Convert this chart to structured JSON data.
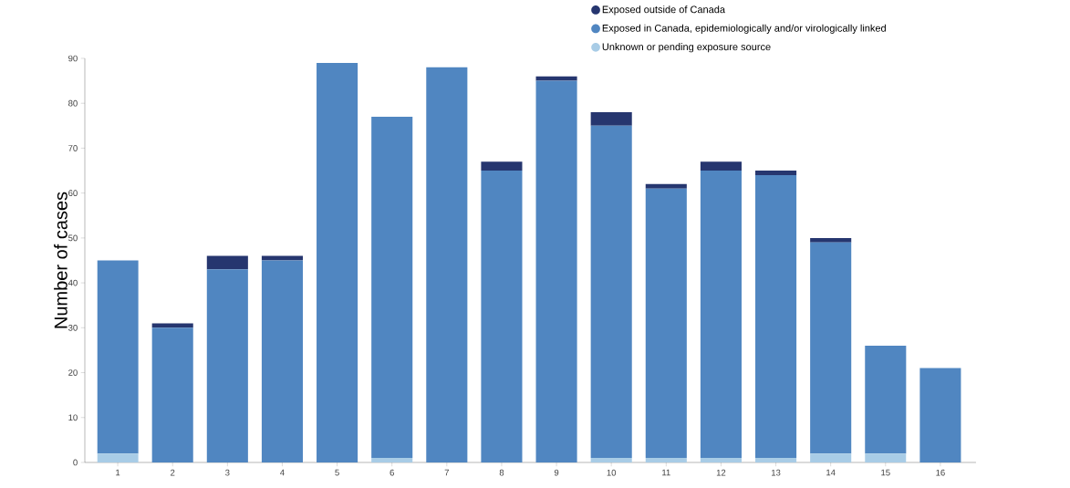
{
  "chart_data": {
    "type": "bar",
    "stacked": true,
    "ylabel": "Number of cases",
    "categories": [
      "1",
      "2",
      "3",
      "4",
      "5",
      "6",
      "7",
      "8",
      "9",
      "10",
      "11",
      "12",
      "13",
      "14",
      "15",
      "16"
    ],
    "series": [
      {
        "name": "Unknown or pending exposure source",
        "color": "#a8cce6",
        "values": [
          2,
          0,
          0,
          0,
          0,
          1,
          0,
          0,
          0,
          1,
          1,
          1,
          1,
          2,
          2,
          0
        ]
      },
      {
        "name": "Exposed in Canada, epidemiologically and/or virologically linked",
        "color": "#5086c1",
        "values": [
          43,
          30,
          43,
          45,
          89,
          76,
          88,
          65,
          85,
          74,
          60,
          64,
          63,
          47,
          24,
          21
        ]
      },
      {
        "name": "Exposed outside of Canada",
        "color": "#26366f",
        "values": [
          0,
          1,
          3,
          1,
          0,
          0,
          0,
          2,
          1,
          3,
          1,
          2,
          1,
          1,
          0,
          0
        ]
      }
    ],
    "ylim": [
      0,
      90
    ],
    "yticks": [
      0,
      10,
      20,
      30,
      40,
      50,
      60,
      70,
      80,
      90
    ],
    "legend": "top right"
  }
}
